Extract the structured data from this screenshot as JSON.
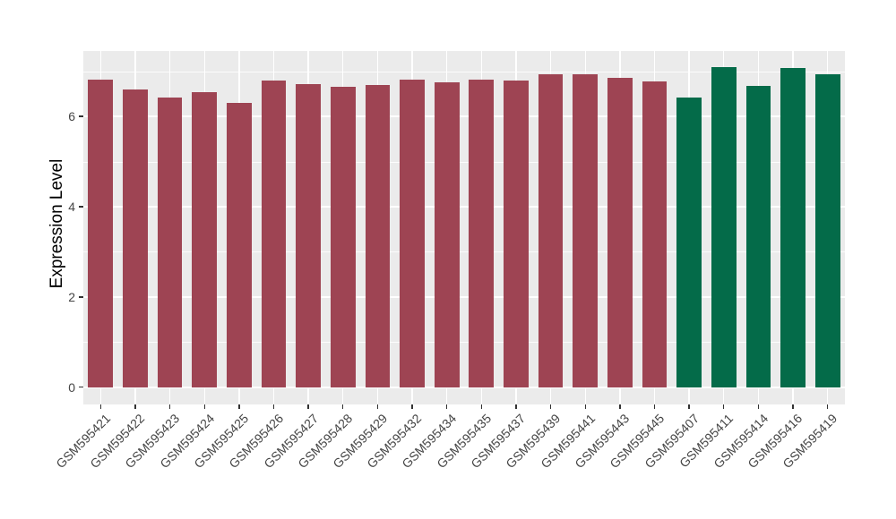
{
  "chart_data": {
    "type": "bar",
    "ylabel": "Expression Level",
    "categories": [
      "GSM595421",
      "GSM595422",
      "GSM595423",
      "GSM595424",
      "GSM595425",
      "GSM595426",
      "GSM595427",
      "GSM595428",
      "GSM595429",
      "GSM595432",
      "GSM595434",
      "GSM595435",
      "GSM595437",
      "GSM595439",
      "GSM595441",
      "GSM595443",
      "GSM595445",
      "GSM595407",
      "GSM595411",
      "GSM595414",
      "GSM595416",
      "GSM595419"
    ],
    "values": [
      6.82,
      6.6,
      6.41,
      6.53,
      6.31,
      6.8,
      6.72,
      6.66,
      6.7,
      6.82,
      6.76,
      6.82,
      6.79,
      6.94,
      6.94,
      6.85,
      6.78,
      6.42,
      7.09,
      6.68,
      7.07,
      6.94
    ],
    "bar_groups": [
      "A",
      "A",
      "A",
      "A",
      "A",
      "A",
      "A",
      "A",
      "A",
      "A",
      "A",
      "A",
      "A",
      "A",
      "A",
      "A",
      "A",
      "B",
      "B",
      "B",
      "B",
      "B"
    ],
    "group_colors": {
      "A": "#9E4453",
      "B": "#046B49"
    },
    "yticks": [
      0,
      2,
      4,
      6
    ],
    "minor_yticks": [
      1,
      3,
      5,
      7
    ],
    "ylim": [
      -0.38,
      7.45
    ],
    "x_tick_rotation_deg": 45,
    "legend": "none",
    "grid": "major-and-minor",
    "background": "#FFFFFF",
    "panel_background": "#EBEBEB",
    "grid_color": "#FFFFFF",
    "axis_text_color": "#454545",
    "tick_mark_color": "#333333"
  }
}
